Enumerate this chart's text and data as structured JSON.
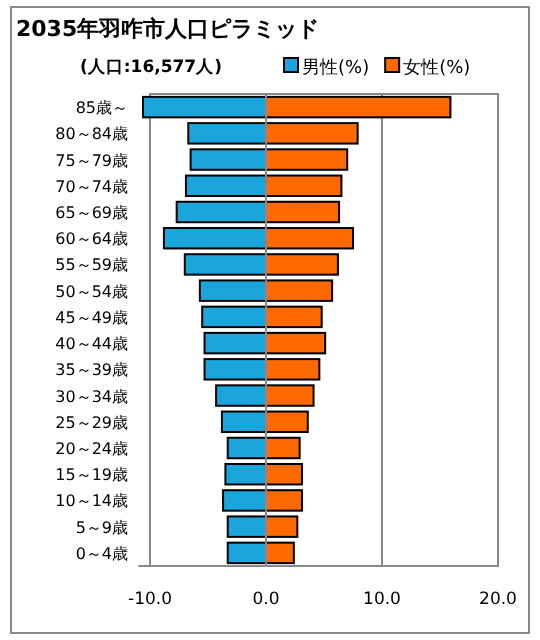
{
  "chart_data": {
    "type": "bar",
    "orientation": "horizontal",
    "stacked": true,
    "title": "2035年羽咋市人口ピラミッド",
    "subtitle": "(人口:16,577人)",
    "categories": [
      "85歳～",
      "80～84歳",
      "75～79歳",
      "70～74歳",
      "65～69歳",
      "60～64歳",
      "55～59歳",
      "50～54歳",
      "45～49歳",
      "40～44歳",
      "35～39歳",
      "30～34歳",
      "25～29歳",
      "20～24歳",
      "15～19歳",
      "10～14歳",
      "5～9歳",
      "0～4歳"
    ],
    "series": [
      {
        "name": "男性(%)",
        "color": "#1aa6dc",
        "values": [
          -10.6,
          -6.7,
          -6.5,
          -6.9,
          -7.7,
          -8.8,
          -7.0,
          -5.7,
          -5.5,
          -5.3,
          -5.3,
          -4.3,
          -3.8,
          -3.3,
          -3.5,
          -3.7,
          -3.3,
          -3.3
        ]
      },
      {
        "name": "女性(%)",
        "color": "#ff6a00",
        "values": [
          15.9,
          7.9,
          7.0,
          6.5,
          6.3,
          7.5,
          6.2,
          5.7,
          4.8,
          5.1,
          4.6,
          4.1,
          3.6,
          2.9,
          3.1,
          3.1,
          2.7,
          2.4
        ]
      }
    ],
    "xlim": [
      -11,
      20
    ],
    "xticks": [
      {
        "value": -10,
        "label": "-10.0"
      },
      {
        "value": 0,
        "label": "0.0"
      },
      {
        "value": 10,
        "label": "10.0"
      },
      {
        "value": 20,
        "label": "20.0"
      }
    ],
    "grid": "x",
    "legend": "top right"
  }
}
